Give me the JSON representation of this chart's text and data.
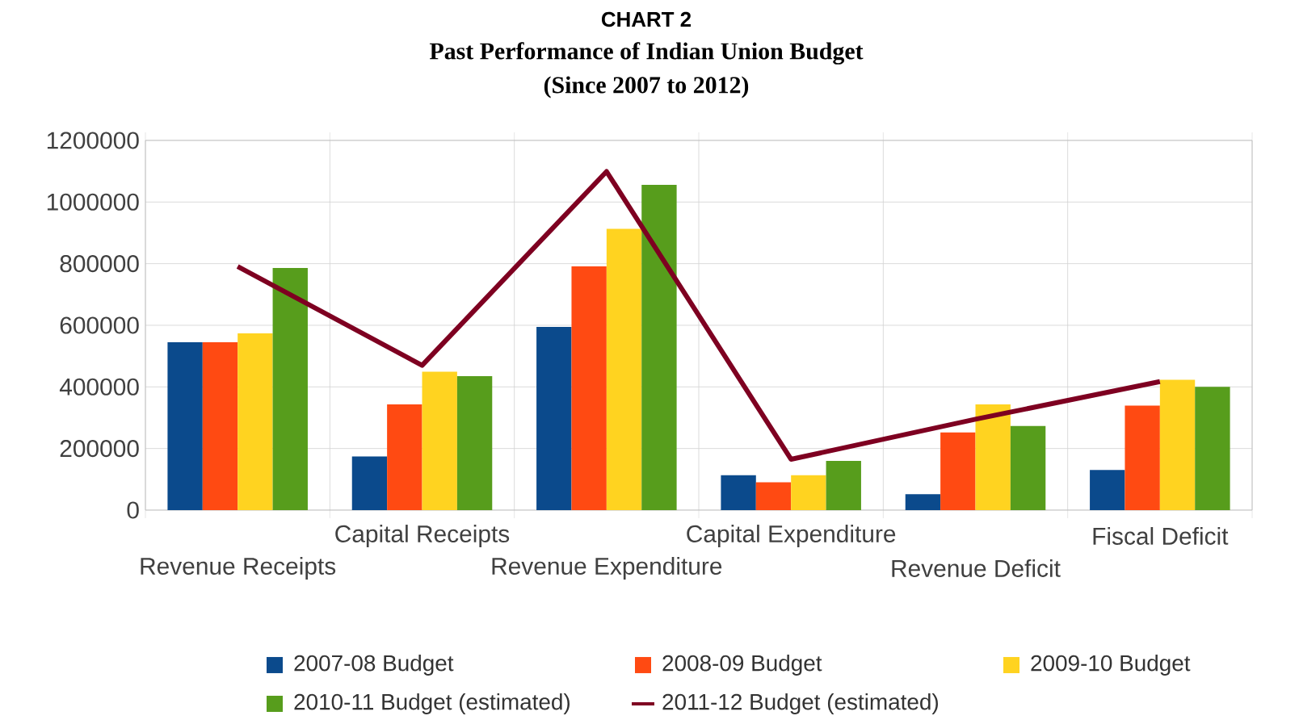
{
  "chart_data": {
    "type": "bar",
    "title": "Past Performance of Indian Union Budget",
    "subtitle": "(Since 2007 to 2012)",
    "annotations": [
      "CHART 2"
    ],
    "categories": [
      "Revenue Receipts",
      "Capital Receipts",
      "Revenue Expenditure",
      "Capital Expenditure",
      "Revenue Deficit",
      "Fiscal Deficit"
    ],
    "series": [
      {
        "name": "2007-08 Budget",
        "color": "#0b4a8c",
        "values": [
          545000,
          174000,
          595000,
          113000,
          52000,
          130000
        ]
      },
      {
        "name": "2008-09 Budget",
        "color": "#ff4a12",
        "values": [
          545000,
          343000,
          791000,
          90000,
          252000,
          339000
        ]
      },
      {
        "name": "2009-10 Budget",
        "color": "#ffd320",
        "values": [
          574000,
          449000,
          913000,
          113000,
          343000,
          423000
        ]
      },
      {
        "name": "2010-11 Budget (estimated)",
        "color": "#579d1c",
        "values": [
          786000,
          435000,
          1056000,
          160000,
          273000,
          400000
        ]
      },
      {
        "name": "2011-12 Budget (estimated)",
        "color": "#7e0021",
        "type": "line",
        "values": [
          791000,
          470000,
          1099000,
          165000,
          295000,
          417000
        ]
      }
    ],
    "ylim": [
      0,
      1200000
    ],
    "yticks": [
      0,
      200000,
      400000,
      600000,
      800000,
      1000000,
      1200000
    ],
    "grid": true,
    "legend": "bottom",
    "marker": "none"
  }
}
